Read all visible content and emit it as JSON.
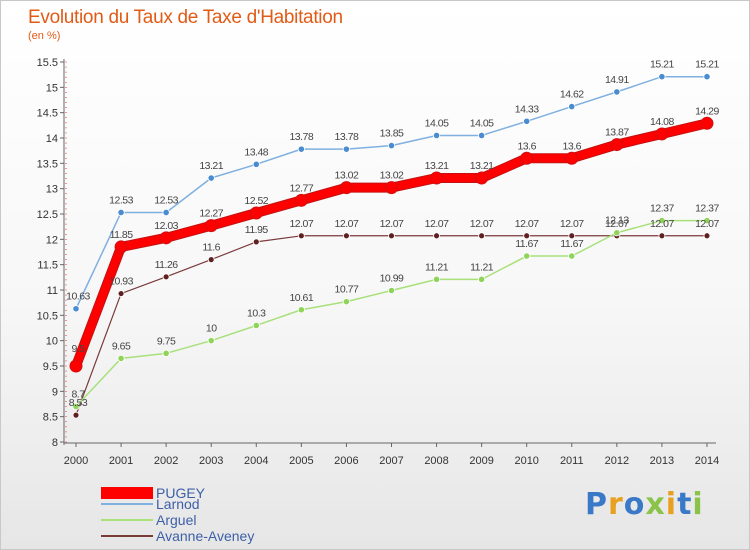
{
  "title": "Evolution du Taux de Taxe d'Habitation",
  "unit": "(en %)",
  "logo": "Proxiti",
  "chart_data": {
    "type": "line",
    "title": "Evolution du Taux de Taxe d'Habitation",
    "ylabel": "(en %)",
    "xlabel": "",
    "x": [
      "2000",
      "2001",
      "2002",
      "2003",
      "2004",
      "2005",
      "2006",
      "2007",
      "2008",
      "2009",
      "2010",
      "2011",
      "2012",
      "2013",
      "2014"
    ],
    "ylim": [
      8,
      15.5
    ],
    "yticks": [
      8,
      8.5,
      9,
      9.5,
      10,
      10.5,
      11,
      11.5,
      12,
      12.5,
      13,
      13.5,
      14,
      14.5,
      15,
      15.5
    ],
    "grid": false,
    "legend_position": "bottom-left",
    "series": [
      {
        "name": "PUGEY",
        "color": "#ff0000",
        "values": [
          9.5,
          11.85,
          12.03,
          12.27,
          12.52,
          12.77,
          13.02,
          13.02,
          13.21,
          13.21,
          13.6,
          13.6,
          13.87,
          14.08,
          14.29
        ]
      },
      {
        "name": "Larnod",
        "color": "#5b9bd5",
        "values": [
          10.63,
          12.53,
          12.53,
          13.21,
          13.48,
          13.78,
          13.78,
          13.85,
          14.05,
          14.05,
          14.33,
          14.62,
          14.91,
          15.21,
          15.21
        ]
      },
      {
        "name": "Arguel",
        "color": "#8fd45a",
        "values": [
          8.7,
          9.65,
          9.75,
          10,
          10.3,
          10.61,
          10.77,
          10.99,
          11.21,
          11.21,
          11.67,
          11.67,
          12.13,
          12.37,
          12.37
        ]
      },
      {
        "name": "Avanne-Aveney",
        "color": "#6b2b2b",
        "values": [
          8.53,
          10.93,
          11.26,
          11.6,
          11.95,
          12.07,
          12.07,
          12.07,
          12.07,
          12.07,
          12.07,
          12.07,
          12.07,
          12.07,
          12.07
        ]
      }
    ],
    "data_labels": [
      [
        "9.5",
        "11.85",
        "12.03",
        "12.27",
        "12.52",
        "12.77",
        "13.02",
        "13.02",
        "13.21",
        "13.21",
        "13.6",
        "13.6",
        "13.87",
        "14.08",
        "14.29"
      ],
      [
        "10.63",
        "12.53",
        "12.53",
        "13.21",
        "13.48",
        "13.78",
        "13.78",
        "13.85",
        "14.05",
        "14.05",
        "14.33",
        "14.62",
        "14.91",
        "15.21",
        "15.21"
      ],
      [
        "8.7",
        "9.65",
        "9.75",
        "10",
        "10.3",
        "10.61",
        "10.77",
        "10.99",
        "11.21",
        "11.21",
        "11.67",
        "11.67",
        "12.13",
        "12.37",
        "12.37"
      ],
      [
        "8.53",
        "10.93",
        "11.26",
        "11.6",
        "11.95",
        "12.07",
        "12.07",
        "12.07",
        "12.07",
        "12.07",
        "12.07",
        "12.07",
        "12.07",
        "12.07",
        "12.07"
      ]
    ]
  }
}
